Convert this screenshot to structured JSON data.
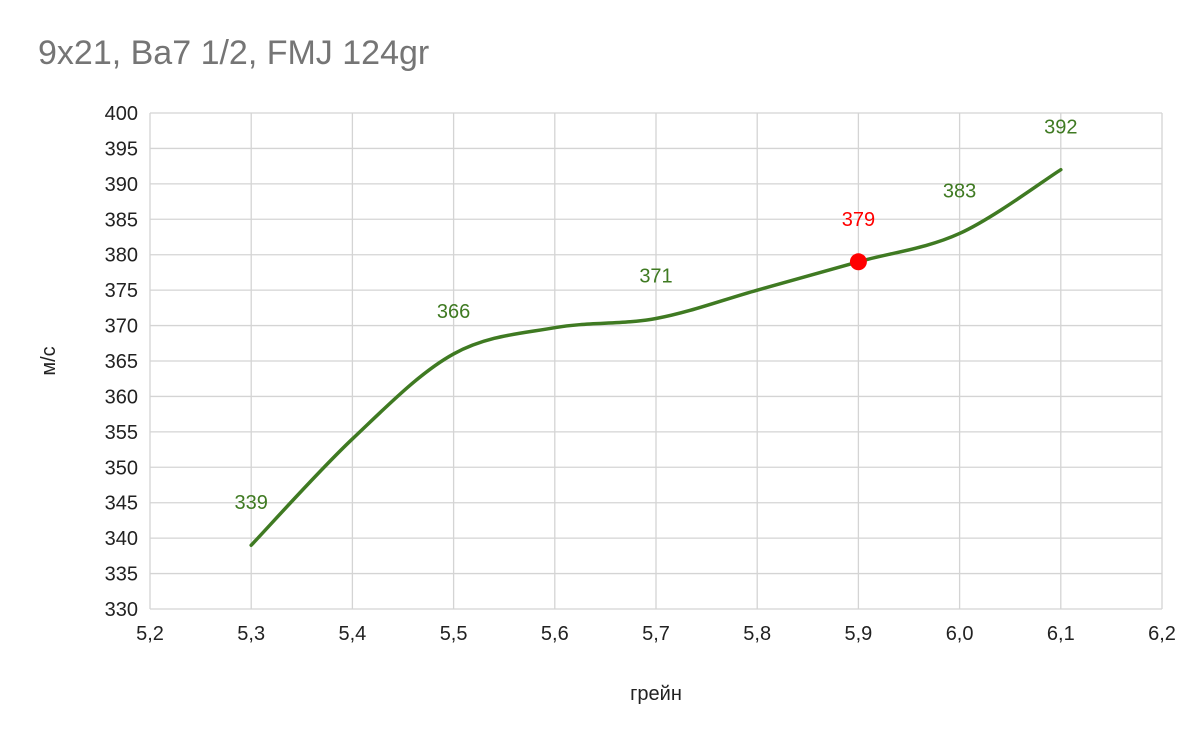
{
  "chart_data": {
    "type": "line",
    "title": "9x21, Ва7 1/2, FMJ 124gr",
    "xlabel": "грейн",
    "ylabel": "м/с",
    "xlim": [
      5.2,
      6.2
    ],
    "ylim": [
      330,
      400
    ],
    "x_ticks": [
      "5,2",
      "5,3",
      "5,4",
      "5,5",
      "5,6",
      "5,7",
      "5,8",
      "5,9",
      "6,0",
      "6,1",
      "6,2"
    ],
    "y_ticks": [
      "330",
      "335",
      "340",
      "345",
      "350",
      "355",
      "360",
      "365",
      "370",
      "375",
      "380",
      "385",
      "390",
      "395",
      "400"
    ],
    "grid": true,
    "smooth": true,
    "series": [
      {
        "color": "#3f7a22",
        "points": [
          {
            "x": 5.3,
            "y": 339,
            "label": "339"
          },
          {
            "x": 5.4,
            "y": 354,
            "label": ""
          },
          {
            "x": 5.5,
            "y": 366,
            "label": "366"
          },
          {
            "x": 5.6,
            "y": 369.7,
            "label": ""
          },
          {
            "x": 5.7,
            "y": 371,
            "label": "371"
          },
          {
            "x": 5.8,
            "y": 375,
            "label": ""
          },
          {
            "x": 5.9,
            "y": 379,
            "label": "379",
            "highlight": true
          },
          {
            "x": 6.0,
            "y": 383,
            "label": "383"
          },
          {
            "x": 6.1,
            "y": 392,
            "label": "392"
          }
        ]
      }
    ],
    "highlight_color": "#ff0000"
  }
}
